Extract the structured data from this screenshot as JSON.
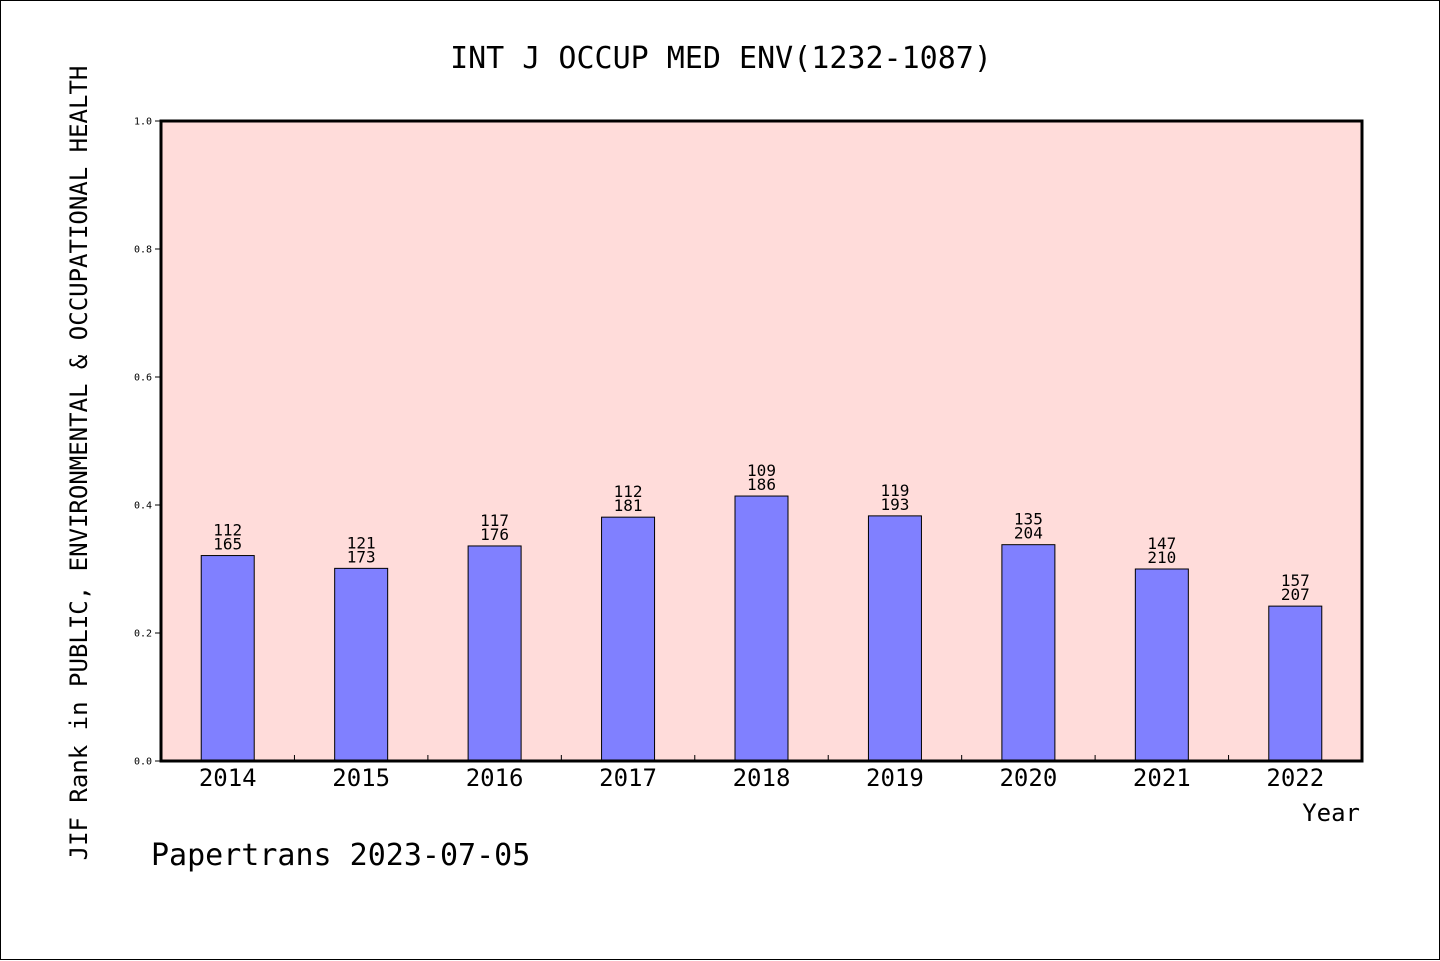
{
  "chart_data": {
    "type": "bar",
    "title": "INT J OCCUP MED ENV(1232-1087)",
    "xlabel": "Year",
    "ylabel": "JIF Rank in PUBLIC, ENVIRONMENTAL & OCCUPATIONAL HEALTH",
    "ylim": [
      0,
      1.0
    ],
    "yticks": [
      "0.0",
      "0.2",
      "0.4",
      "0.6",
      "0.8",
      "1.0"
    ],
    "categories": [
      "2014",
      "2015",
      "2016",
      "2017",
      "2018",
      "2019",
      "2020",
      "2021",
      "2022"
    ],
    "values": [
      0.321,
      0.301,
      0.336,
      0.381,
      0.414,
      0.383,
      0.338,
      0.3,
      0.242
    ],
    "rank": [
      "112",
      "121",
      "117",
      "112",
      "109",
      "119",
      "135",
      "147",
      "157"
    ],
    "total": [
      "165",
      "173",
      "176",
      "181",
      "186",
      "193",
      "204",
      "210",
      "207"
    ],
    "bar_color": "#8080ff",
    "plot_background": "#ffdcda",
    "grid": false
  },
  "footer": "Papertrans 2023-07-05"
}
